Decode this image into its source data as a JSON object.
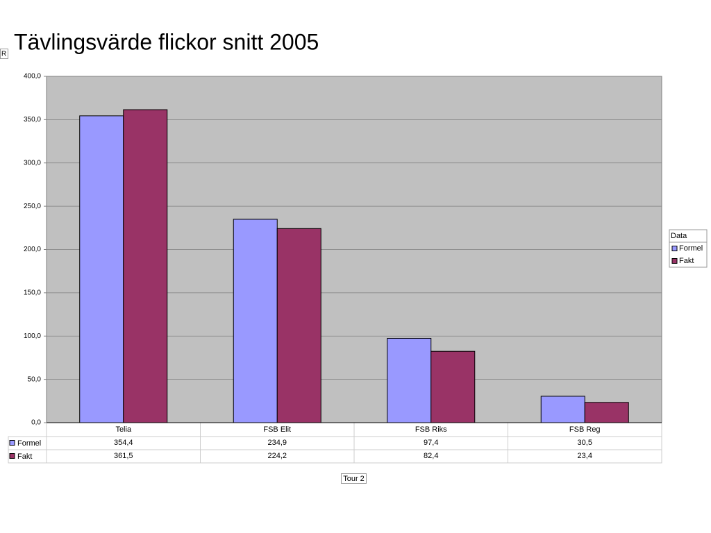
{
  "chart_data": {
    "type": "bar",
    "title": "Tävlingsvärde flickor snitt 2005",
    "corner_label": "R",
    "x_label": "Tour 2",
    "legend_title": "Data",
    "legend": "right",
    "grid": true,
    "categories": [
      "Telia",
      "FSB Elit",
      "FSB Riks",
      "FSB Reg"
    ],
    "series": [
      {
        "name": "Formel",
        "color": "#9999ff",
        "values": [
          354.4,
          234.9,
          97.4,
          30.5
        ],
        "value_labels": [
          "354,4",
          "234,9",
          "97,4",
          "30,5"
        ]
      },
      {
        "name": "Fakt",
        "color": "#993366",
        "values": [
          361.5,
          224.2,
          82.4,
          23.4
        ],
        "value_labels": [
          "361,5",
          "224,2",
          "82,4",
          "23,4"
        ]
      }
    ],
    "ylim": [
      0,
      400
    ],
    "yticks": [
      {
        "value": 0,
        "label": "0,0"
      },
      {
        "value": 50,
        "label": "50,0"
      },
      {
        "value": 100,
        "label": "100,0"
      },
      {
        "value": 150,
        "label": "150,0"
      },
      {
        "value": 200,
        "label": "200,0"
      },
      {
        "value": 250,
        "label": "250,0"
      },
      {
        "value": 300,
        "label": "300,0"
      },
      {
        "value": 350,
        "label": "350,0"
      },
      {
        "value": 400,
        "label": "400,0"
      }
    ]
  }
}
